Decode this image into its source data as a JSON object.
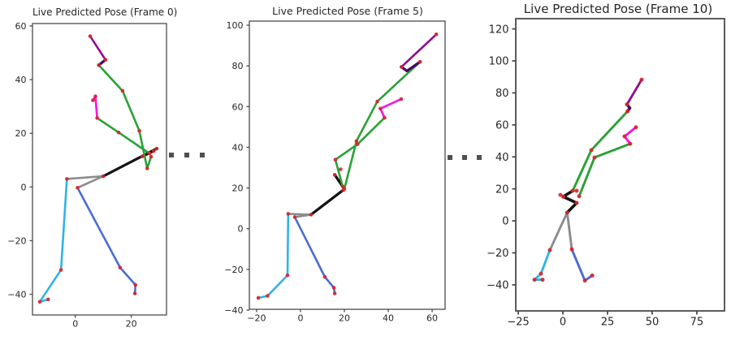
{
  "figure": {
    "background": "#ffffff",
    "axes_border_color": "#4a4a4a",
    "tick_label_color": "#262626",
    "joint_marker_color": "#d8232a",
    "separator_square_color": "#4f4f4f"
  },
  "separators": [
    {
      "name": "ellipsis-between-frame-0-and-frame-5",
      "squares": 3
    },
    {
      "name": "ellipsis-between-frame-5-and-frame-10",
      "squares": 3
    }
  ],
  "chart_data": [
    {
      "type": "line",
      "title": "Live Predicted Pose (Frame 0)",
      "xlabel": "",
      "ylabel": "",
      "xlim": [
        -15.3,
        32.6
      ],
      "ylim": [
        -47.7,
        60.9
      ],
      "xticks": [
        0,
        20
      ],
      "yticks": [
        -40,
        -20,
        0,
        20,
        40,
        60
      ],
      "grid": false,
      "legend": "none",
      "segments": [
        {
          "part": "pelvis-left-link",
          "color": "#8c8c8c",
          "points": [
            [
              -3.0,
              3.0
            ],
            [
              10.0,
              4.0
            ]
          ]
        },
        {
          "part": "pelvis-right-link",
          "color": "#8c8c8c",
          "points": [
            [
              0.8,
              -0.3
            ],
            [
              10.0,
              4.0
            ]
          ]
        },
        {
          "part": "spine",
          "color": "#141414",
          "points": [
            [
              10.0,
              4.0
            ],
            [
              29.1,
              14.3
            ]
          ]
        },
        {
          "part": "spine-upper",
          "color": "#141414",
          "points": [
            [
              28.0,
              13.4
            ],
            [
              24.0,
              11.4
            ]
          ]
        },
        {
          "part": "torso-chain-right",
          "color": "#2aa136",
          "points": [
            [
              8.4,
              45.4
            ],
            [
              16.9,
              35.8
            ],
            [
              22.9,
              20.9
            ],
            [
              25.7,
              6.9
            ],
            [
              27.1,
              11.3
            ]
          ]
        },
        {
          "part": "torso-chain-left",
          "color": "#2aa136",
          "points": [
            [
              7.8,
              25.7
            ],
            [
              15.5,
              20.3
            ],
            [
              26.5,
              12.5
            ]
          ]
        },
        {
          "part": "left-leg",
          "color": "#2eb4e8",
          "points": [
            [
              -3.0,
              3.0
            ],
            [
              -5.1,
              -30.9
            ],
            [
              -12.7,
              -42.8
            ]
          ]
        },
        {
          "part": "left-foot",
          "color": "#2eb4e8",
          "points": [
            [
              -12.7,
              -42.8
            ],
            [
              -9.7,
              -41.9
            ]
          ]
        },
        {
          "part": "right-leg",
          "color": "#4a6cd4",
          "points": [
            [
              0.8,
              -0.3
            ],
            [
              16.0,
              -30.0
            ],
            [
              21.5,
              -36.5
            ],
            [
              21.3,
              -39.7
            ]
          ]
        },
        {
          "part": "left-arm",
          "color": "#fb12e3",
          "points": [
            [
              6.3,
              32.3
            ],
            [
              7.2,
              33.8
            ],
            [
              7.8,
              25.7
            ]
          ]
        },
        {
          "part": "head",
          "color": "#900d90",
          "points": [
            [
              5.3,
              56.2
            ],
            [
              10.8,
              47.4
            ]
          ]
        },
        {
          "part": "neck",
          "color": "#470d66",
          "points": [
            [
              10.8,
              47.4
            ],
            [
              8.4,
              45.4
            ]
          ]
        }
      ],
      "joints": [
        [
          5.3,
          56.2
        ],
        [
          10.8,
          47.4
        ],
        [
          8.4,
          45.4
        ],
        [
          16.9,
          35.8
        ],
        [
          22.9,
          20.9
        ],
        [
          25.7,
          6.9
        ],
        [
          27.1,
          11.3
        ],
        [
          6.3,
          32.3
        ],
        [
          7.2,
          33.8
        ],
        [
          7.8,
          25.7
        ],
        [
          15.5,
          20.3
        ],
        [
          26.5,
          12.5
        ],
        [
          10.0,
          4.0
        ],
        [
          29.1,
          14.3
        ],
        [
          24.0,
          11.4
        ],
        [
          28.0,
          13.4
        ],
        [
          -3.0,
          3.0
        ],
        [
          0.8,
          -0.3
        ],
        [
          -5.1,
          -30.9
        ],
        [
          -12.7,
          -42.8
        ],
        [
          -9.7,
          -41.9
        ],
        [
          16.0,
          -30.0
        ],
        [
          21.5,
          -36.5
        ],
        [
          21.3,
          -39.7
        ]
      ]
    },
    {
      "type": "line",
      "title": "Live Predicted Pose (Frame 5)",
      "xlabel": "",
      "ylabel": "",
      "xlim": [
        -23.3,
        65.9
      ],
      "ylim": [
        -39.6,
        102.0
      ],
      "xticks": [
        -20,
        0,
        20,
        40,
        60
      ],
      "yticks": [
        -40,
        -20,
        0,
        20,
        40,
        60,
        80,
        100
      ],
      "grid": false,
      "legend": "none",
      "segments": [
        {
          "part": "pelvis-left-link",
          "color": "#8c8c8c",
          "points": [
            [
              -5.6,
              7.3
            ],
            [
              4.8,
              6.9
            ]
          ]
        },
        {
          "part": "pelvis-right-link",
          "color": "#8c8c8c",
          "points": [
            [
              -2.6,
              5.7
            ],
            [
              4.8,
              6.9
            ]
          ]
        },
        {
          "part": "spine",
          "color": "#141414",
          "points": [
            [
              4.8,
              6.9
            ],
            [
              19.5,
              19.0
            ]
          ]
        },
        {
          "part": "spine-upper",
          "color": "#141414",
          "points": [
            [
              15.6,
              26.5
            ],
            [
              19.2,
              20.8
            ]
          ]
        },
        {
          "part": "torso-chain-right",
          "color": "#2aa136",
          "points": [
            [
              54.5,
              82.0
            ],
            [
              35.0,
              62.5
            ],
            [
              25.5,
              43.0
            ],
            [
              20.0,
              19.5
            ]
          ]
        },
        {
          "part": "torso-chain-left",
          "color": "#2aa136",
          "points": [
            [
              38.3,
              54.5
            ],
            [
              26.0,
              41.5
            ],
            [
              15.9,
              33.9
            ],
            [
              19.2,
              20.8
            ]
          ]
        },
        {
          "part": "left-leg",
          "color": "#2eb4e8",
          "points": [
            [
              -5.6,
              7.3
            ],
            [
              -5.9,
              -22.9
            ],
            [
              -15.0,
              -33.0
            ],
            [
              -19.2,
              -34.0
            ]
          ]
        },
        {
          "part": "right-leg",
          "color": "#4a6cd4",
          "points": [
            [
              -2.6,
              5.7
            ],
            [
              11.1,
              -23.7
            ],
            [
              15.2,
              -29.0
            ],
            [
              15.6,
              -31.8
            ]
          ]
        },
        {
          "part": "left-arm",
          "color": "#fb12e3",
          "points": [
            [
              45.9,
              63.7
            ],
            [
              36.4,
              59.0
            ],
            [
              38.3,
              54.5
            ]
          ]
        },
        {
          "part": "head",
          "color": "#900d90",
          "points": [
            [
              61.9,
              95.5
            ],
            [
              46.0,
              79.5
            ]
          ]
        },
        {
          "part": "neck",
          "color": "#470d66",
          "points": [
            [
              46.0,
              79.5
            ],
            [
              48.5,
              77.5
            ],
            [
              54.5,
              82.0
            ]
          ]
        }
      ],
      "joints": [
        [
          61.9,
          95.5
        ],
        [
          46.0,
          79.5
        ],
        [
          54.5,
          82.0
        ],
        [
          35.0,
          62.5
        ],
        [
          25.5,
          43.0
        ],
        [
          20.0,
          19.5
        ],
        [
          45.9,
          63.7
        ],
        [
          36.4,
          59.0
        ],
        [
          38.3,
          54.5
        ],
        [
          26.0,
          41.5
        ],
        [
          15.9,
          33.9
        ],
        [
          19.2,
          20.8
        ],
        [
          18.3,
          29.2
        ],
        [
          15.6,
          26.5
        ],
        [
          19.5,
          19.0
        ],
        [
          4.8,
          6.9
        ],
        [
          -5.6,
          7.3
        ],
        [
          -2.6,
          5.7
        ],
        [
          -5.9,
          -22.9
        ],
        [
          -15.0,
          -33.0
        ],
        [
          -19.2,
          -34.0
        ],
        [
          11.1,
          -23.7
        ],
        [
          15.2,
          -29.0
        ],
        [
          15.6,
          -31.8
        ]
      ]
    },
    {
      "type": "line",
      "title": "Live Predicted Pose (Frame 10)",
      "xlabel": "",
      "ylabel": "",
      "xlim": [
        -26.4,
        90.5
      ],
      "ylim": [
        -56.3,
        126.4
      ],
      "xticks": [
        -25,
        0,
        25,
        50,
        75
      ],
      "yticks": [
        -40,
        -20,
        0,
        20,
        40,
        60,
        80,
        100,
        120
      ],
      "grid": false,
      "legend": "none",
      "segments": [
        {
          "part": "pelvis-left-link",
          "color": "#8c8c8c",
          "points": [
            [
              2.4,
              5.2
            ],
            [
              -7.3,
              -18.3
            ]
          ]
        },
        {
          "part": "pelvis-right-link",
          "color": "#8c8c8c",
          "points": [
            [
              2.4,
              5.2
            ],
            [
              5.0,
              -17.8
            ]
          ]
        },
        {
          "part": "spine",
          "color": "#141414",
          "points": [
            [
              2.4,
              5.2
            ],
            [
              7.7,
              11.2
            ],
            [
              0.2,
              15.1
            ],
            [
              5.5,
              18.8
            ]
          ]
        },
        {
          "part": "torso-chain-right",
          "color": "#2aa136",
          "points": [
            [
              36.2,
              68.5
            ],
            [
              15.9,
              44.2
            ],
            [
              5.5,
              18.8
            ]
          ]
        },
        {
          "part": "torso-chain-left",
          "color": "#2aa136",
          "points": [
            [
              37.7,
              48.2
            ],
            [
              17.7,
              39.6
            ],
            [
              9.1,
              15.4
            ]
          ]
        },
        {
          "part": "left-leg",
          "color": "#2eb4e8",
          "points": [
            [
              -7.3,
              -18.3
            ],
            [
              -12.3,
              -33.0
            ],
            [
              -15.9,
              -36.8
            ]
          ]
        },
        {
          "part": "left-foot",
          "color": "#2eb4e8",
          "points": [
            [
              -15.9,
              -36.8
            ],
            [
              -11.4,
              -36.8
            ]
          ]
        },
        {
          "part": "right-leg",
          "color": "#4a6cd4",
          "points": [
            [
              5.0,
              -17.8
            ],
            [
              12.3,
              -37.3
            ],
            [
              16.4,
              -34.2
            ]
          ]
        },
        {
          "part": "left-arm",
          "color": "#fb12e3",
          "points": [
            [
              40.9,
              58.5
            ],
            [
              34.5,
              52.8
            ],
            [
              37.7,
              48.2
            ]
          ]
        },
        {
          "part": "head",
          "color": "#900d90",
          "points": [
            [
              44.1,
              88.3
            ],
            [
              35.9,
              72.8
            ]
          ]
        },
        {
          "part": "neck",
          "color": "#470d66",
          "points": [
            [
              35.9,
              72.8
            ],
            [
              37.5,
              70.5
            ],
            [
              36.2,
              68.5
            ]
          ]
        }
      ],
      "joints": [
        [
          44.1,
          88.3
        ],
        [
          35.9,
          72.8
        ],
        [
          36.2,
          68.5
        ],
        [
          15.9,
          44.2
        ],
        [
          5.5,
          18.8
        ],
        [
          40.9,
          58.5
        ],
        [
          34.5,
          52.8
        ],
        [
          37.7,
          48.2
        ],
        [
          17.7,
          39.6
        ],
        [
          9.1,
          15.4
        ],
        [
          2.4,
          5.2
        ],
        [
          7.7,
          11.2
        ],
        [
          0.2,
          15.1
        ],
        [
          -1.4,
          16.2
        ],
        [
          7.7,
          18.8
        ],
        [
          -7.3,
          -18.3
        ],
        [
          5.0,
          -17.8
        ],
        [
          -12.3,
          -33.0
        ],
        [
          -15.9,
          -36.8
        ],
        [
          -11.4,
          -36.8
        ],
        [
          12.3,
          -37.3
        ],
        [
          16.4,
          -34.2
        ]
      ]
    }
  ]
}
